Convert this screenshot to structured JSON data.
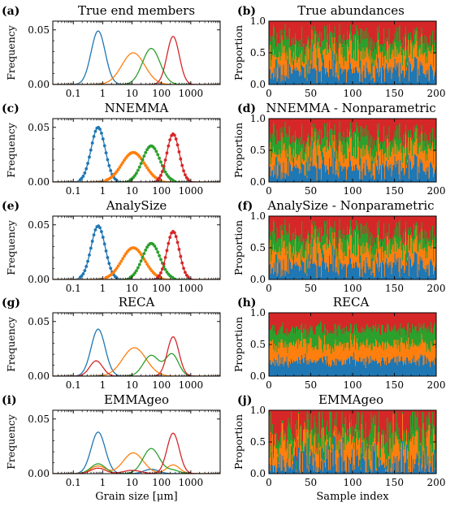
{
  "colors": {
    "blue": "#1f77b4",
    "orange": "#ff7f0e",
    "green": "#2ca02c",
    "red": "#d62728"
  },
  "freq_yticks": [
    "0.00",
    "0.05"
  ],
  "prop_yticks": [
    "0.0",
    "0.5",
    "1.0"
  ],
  "grain_xticks": [
    {
      "v": 0.1,
      "label": "0.1"
    },
    {
      "v": 1,
      "label": "1"
    },
    {
      "v": 10,
      "label": "10"
    },
    {
      "v": 100,
      "label": "100"
    },
    {
      "v": 1000,
      "label": "1000"
    }
  ],
  "sample_xticks": [
    0,
    50,
    100,
    150,
    200
  ],
  "xlabel_left": "Grain size [μm]",
  "xlabel_right": "Sample index",
  "ylabel_left": "Frequency",
  "ylabel_right": "Proportion",
  "chart_data": [
    {
      "letter": "(a)",
      "title": "True end members",
      "type": "line",
      "ylabel": "Frequency",
      "xlabel": "",
      "xscale": "log",
      "xlim": [
        0.02,
        10000
      ],
      "ylim": [
        0,
        0.058
      ],
      "markers": false,
      "series": [
        {
          "color": "blue",
          "components": [
            {
              "mu": 0.7,
              "sigma": 0.24,
              "amp": 0.049
            }
          ]
        },
        {
          "color": "orange",
          "components": [
            {
              "mu": 11,
              "sigma": 0.39,
              "amp": 0.029
            }
          ]
        },
        {
          "color": "green",
          "components": [
            {
              "mu": 45,
              "sigma": 0.3,
              "amp": 0.033
            }
          ]
        },
        {
          "color": "red",
          "components": [
            {
              "mu": 250,
              "sigma": 0.21,
              "amp": 0.044
            }
          ]
        }
      ]
    },
    {
      "letter": "(b)",
      "title": "True abundances",
      "type": "stacked-bar",
      "ylabel": "Proportion",
      "xlabel": "",
      "xlim": [
        0,
        200
      ],
      "ylim": [
        0,
        1
      ],
      "n": 200,
      "seed": 11,
      "means": [
        0.22,
        0.28,
        0.22,
        0.28
      ],
      "jitter": 0.75
    },
    {
      "letter": "(c)",
      "title": "NNEMMA",
      "type": "line",
      "ylabel": "Frequency",
      "xlabel": "",
      "xscale": "log",
      "xlim": [
        0.02,
        10000
      ],
      "ylim": [
        0,
        0.058
      ],
      "markers": true,
      "series": [
        {
          "color": "blue",
          "components": [
            {
              "mu": 0.7,
              "sigma": 0.24,
              "amp": 0.05
            }
          ]
        },
        {
          "color": "orange",
          "components": [
            {
              "mu": 11,
              "sigma": 0.39,
              "amp": 0.027
            }
          ]
        },
        {
          "color": "green",
          "components": [
            {
              "mu": 45,
              "sigma": 0.3,
              "amp": 0.033
            }
          ]
        },
        {
          "color": "red",
          "components": [
            {
              "mu": 250,
              "sigma": 0.21,
              "amp": 0.044
            }
          ]
        }
      ]
    },
    {
      "letter": "(d)",
      "title": "NNEMMA - Nonparametric",
      "type": "stacked-bar",
      "ylabel": "Proportion",
      "xlabel": "",
      "xlim": [
        0,
        200
      ],
      "ylim": [
        0,
        1
      ],
      "n": 200,
      "seed": 11,
      "means": [
        0.22,
        0.28,
        0.22,
        0.28
      ],
      "jitter": 0.75
    },
    {
      "letter": "(e)",
      "title": "AnalySize",
      "type": "line",
      "ylabel": "Frequency",
      "xlabel": "",
      "xscale": "log",
      "xlim": [
        0.02,
        10000
      ],
      "ylim": [
        0,
        0.058
      ],
      "markers": true,
      "series": [
        {
          "color": "blue",
          "components": [
            {
              "mu": 0.7,
              "sigma": 0.24,
              "amp": 0.049
            }
          ]
        },
        {
          "color": "orange",
          "components": [
            {
              "mu": 11,
              "sigma": 0.39,
              "amp": 0.029
            }
          ]
        },
        {
          "color": "green",
          "components": [
            {
              "mu": 45,
              "sigma": 0.3,
              "amp": 0.033
            }
          ]
        },
        {
          "color": "red",
          "components": [
            {
              "mu": 250,
              "sigma": 0.21,
              "amp": 0.044
            }
          ]
        }
      ]
    },
    {
      "letter": "(f)",
      "title": "AnalySize - Nonparametric",
      "type": "stacked-bar",
      "ylabel": "Proportion",
      "xlabel": "",
      "xlim": [
        0,
        200
      ],
      "ylim": [
        0,
        1
      ],
      "n": 200,
      "seed": 11,
      "means": [
        0.22,
        0.28,
        0.22,
        0.28
      ],
      "jitter": 0.75
    },
    {
      "letter": "(g)",
      "title": "RECA",
      "type": "line",
      "ylabel": "Frequency",
      "xlabel": "",
      "xscale": "log",
      "xlim": [
        0.02,
        10000
      ],
      "ylim": [
        0,
        0.058
      ],
      "markers": false,
      "series": [
        {
          "color": "blue",
          "components": [
            {
              "mu": 0.7,
              "sigma": 0.24,
              "amp": 0.043
            }
          ]
        },
        {
          "color": "orange",
          "components": [
            {
              "mu": 12,
              "sigma": 0.4,
              "amp": 0.026
            }
          ]
        },
        {
          "color": "green",
          "components": [
            {
              "mu": 45,
              "sigma": 0.27,
              "amp": 0.019
            },
            {
              "mu": 230,
              "sigma": 0.22,
              "amp": 0.02
            }
          ]
        },
        {
          "color": "red",
          "components": [
            {
              "mu": 0.6,
              "sigma": 0.22,
              "amp": 0.014
            },
            {
              "mu": 250,
              "sigma": 0.2,
              "amp": 0.036
            }
          ]
        }
      ]
    },
    {
      "letter": "(h)",
      "title": "RECA",
      "type": "stacked-bar",
      "ylabel": "Proportion",
      "xlabel": "",
      "xlim": [
        0,
        200
      ],
      "ylim": [
        0,
        1
      ],
      "n": 200,
      "seed": 23,
      "means": [
        0.24,
        0.26,
        0.24,
        0.26
      ],
      "jitter": 0.35
    },
    {
      "letter": "(i)",
      "title": "EMMAgeo",
      "type": "line",
      "ylabel": "Frequency",
      "xlabel": "Grain size [μm]",
      "xscale": "log",
      "xlim": [
        0.02,
        10000
      ],
      "ylim": [
        0,
        0.058
      ],
      "markers": false,
      "series": [
        {
          "color": "blue",
          "components": [
            {
              "mu": 0.7,
              "sigma": 0.24,
              "amp": 0.038
            },
            {
              "mu": 45,
              "sigma": 0.25,
              "amp": 0.004
            }
          ]
        },
        {
          "color": "orange",
          "components": [
            {
              "mu": 11,
              "sigma": 0.34,
              "amp": 0.019
            },
            {
              "mu": 0.7,
              "sigma": 0.25,
              "amp": 0.007
            },
            {
              "mu": 250,
              "sigma": 0.22,
              "amp": 0.008
            }
          ]
        },
        {
          "color": "green",
          "components": [
            {
              "mu": 45,
              "sigma": 0.28,
              "amp": 0.023
            },
            {
              "mu": 0.7,
              "sigma": 0.25,
              "amp": 0.009
            },
            {
              "mu": 250,
              "sigma": 0.22,
              "amp": 0.003
            }
          ]
        },
        {
          "color": "red",
          "components": [
            {
              "mu": 250,
              "sigma": 0.21,
              "amp": 0.037
            },
            {
              "mu": 0.7,
              "sigma": 0.25,
              "amp": 0.005
            },
            {
              "mu": 10,
              "sigma": 0.3,
              "amp": 0.003
            }
          ]
        }
      ]
    },
    {
      "letter": "(j)",
      "title": "EMMAgeo",
      "type": "stacked-bar",
      "ylabel": "Proportion",
      "xlabel": "Sample index",
      "xlim": [
        0,
        200
      ],
      "ylim": [
        0,
        1
      ],
      "n": 200,
      "seed": 37,
      "means": [
        0.22,
        0.28,
        0.22,
        0.28
      ],
      "jitter": 1.1
    }
  ]
}
